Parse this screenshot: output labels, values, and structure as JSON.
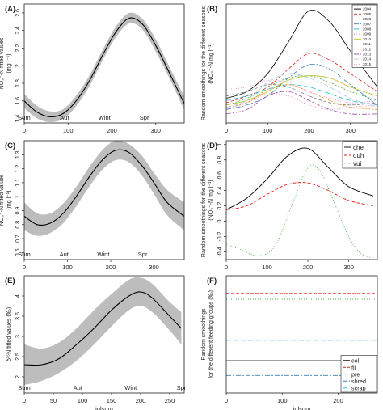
{
  "figure": {
    "background": "#ffffff",
    "band_color": "#bdbdbd"
  },
  "chart_data": [
    {
      "id": "A",
      "panel_label": "(A)",
      "type": "line",
      "ylabel_lines": [
        "NO₃⁻-N fitted values",
        "(mg l⁻¹)"
      ],
      "xlabel": "",
      "xlim": [
        0,
        365
      ],
      "ylim": [
        1.35,
        2.7
      ],
      "xticks": [
        0,
        100,
        200,
        300
      ],
      "yticks": [
        1.4,
        1.6,
        1.8,
        2.0,
        2.2,
        2.4,
        2.6
      ],
      "season_labels": [
        {
          "text": "Sum",
          "x": 0
        },
        {
          "text": "Aut",
          "x": 92
        },
        {
          "text": "Wint",
          "x": 183
        },
        {
          "text": "Spr",
          "x": 274
        }
      ],
      "band": {
        "x": [
          0,
          30,
          60,
          90,
          120,
          150,
          180,
          210,
          240,
          270,
          300,
          330,
          365
        ],
        "lower": [
          1.52,
          1.4,
          1.36,
          1.4,
          1.55,
          1.78,
          2.07,
          2.33,
          2.48,
          2.41,
          2.16,
          1.87,
          1.5
        ],
        "upper": [
          1.68,
          1.54,
          1.48,
          1.51,
          1.67,
          1.9,
          2.19,
          2.45,
          2.6,
          2.53,
          2.3,
          2.0,
          1.65
        ]
      },
      "series": [
        {
          "color": "#000000",
          "dash": "",
          "x": [
            0,
            30,
            60,
            90,
            120,
            150,
            180,
            210,
            240,
            270,
            300,
            330,
            365
          ],
          "y": [
            1.6,
            1.47,
            1.42,
            1.46,
            1.61,
            1.84,
            2.13,
            2.39,
            2.54,
            2.47,
            2.23,
            1.93,
            1.57
          ]
        }
      ]
    },
    {
      "id": "B",
      "panel_label": "(B)",
      "type": "line",
      "ylabel_lines": [
        "Random smoothings for the different seasons",
        "(NO₃⁻-N mg l⁻¹)"
      ],
      "xlabel": "",
      "xlim": [
        0,
        365
      ],
      "ylim": [
        -0.5,
        2.15
      ],
      "xticks": [
        0,
        100,
        200,
        300
      ],
      "yticks": [],
      "legend": {
        "position": "top-right",
        "entries": [
          "2004",
          "2005",
          "2006",
          "2007",
          "2008",
          "2009",
          "2010",
          "2011",
          "2012",
          "2013",
          "2014",
          "2015"
        ]
      },
      "series": [
        {
          "name": "2004",
          "color": "#000000",
          "dash": "",
          "x": [
            0,
            50,
            100,
            150,
            200,
            250,
            300,
            365
          ],
          "y": [
            0.05,
            0.2,
            0.6,
            1.3,
            2.0,
            1.75,
            1.1,
            0.3
          ]
        },
        {
          "name": "2005",
          "color": "#e41a1c",
          "dash": "4,2",
          "x": [
            0,
            50,
            100,
            150,
            200,
            250,
            300,
            365
          ],
          "y": [
            -0.05,
            0.1,
            0.3,
            0.7,
            1.05,
            0.9,
            0.6,
            0.2
          ]
        },
        {
          "name": "2006",
          "color": "#4daf4a",
          "dash": "2,2",
          "x": [
            0,
            50,
            100,
            150,
            200,
            250,
            300,
            365
          ],
          "y": [
            -0.1,
            0.05,
            0.3,
            0.5,
            0.55,
            0.4,
            0.2,
            0.0
          ]
        },
        {
          "name": "2007",
          "color": "#377eb8",
          "dash": "6,2,2,2",
          "x": [
            0,
            50,
            100,
            150,
            200,
            250,
            300,
            365
          ],
          "y": [
            -0.2,
            -0.1,
            0.1,
            0.5,
            0.8,
            0.7,
            0.35,
            -0.1
          ]
        },
        {
          "name": "2008",
          "color": "#17becf",
          "dash": "6,3",
          "x": [
            0,
            50,
            100,
            150,
            200,
            250,
            300,
            365
          ],
          "y": [
            0.0,
            0.1,
            0.25,
            0.35,
            0.3,
            0.15,
            0.0,
            -0.1
          ]
        },
        {
          "name": "2009",
          "color": "#e377c2",
          "dash": "1,2",
          "x": [
            0,
            50,
            100,
            150,
            200,
            250,
            300,
            365
          ],
          "y": [
            -0.2,
            -0.05,
            0.15,
            0.1,
            -0.1,
            -0.2,
            -0.15,
            -0.1
          ]
        },
        {
          "name": "2010",
          "color": "#bcbd22",
          "dash": "",
          "x": [
            0,
            50,
            100,
            150,
            200,
            250,
            300,
            365
          ],
          "y": [
            -0.1,
            0.0,
            0.2,
            0.45,
            0.55,
            0.5,
            0.3,
            0.1
          ]
        },
        {
          "name": "2011",
          "color": "#7f7f7f",
          "dash": "4,2",
          "x": [
            0,
            50,
            100,
            150,
            200,
            250,
            300,
            365
          ],
          "y": [
            0.1,
            0.2,
            0.35,
            0.3,
            0.1,
            -0.05,
            -0.1,
            -0.05
          ]
        },
        {
          "name": "2012",
          "color": "#ff7f00",
          "dash": "2,2",
          "x": [
            0,
            50,
            100,
            150,
            200,
            250,
            300,
            365
          ],
          "y": [
            -0.15,
            -0.05,
            0.25,
            0.35,
            0.2,
            0.0,
            -0.15,
            -0.2
          ]
        },
        {
          "name": "2013",
          "color": "#984ea3",
          "dash": "6,2,2,2",
          "x": [
            0,
            50,
            100,
            150,
            200,
            250,
            300,
            365
          ],
          "y": [
            -0.3,
            -0.2,
            0.1,
            0.2,
            0.0,
            -0.2,
            -0.3,
            -0.3
          ]
        },
        {
          "name": "2014",
          "color": "#a6cee3",
          "dash": "6,3",
          "x": [
            0,
            50,
            100,
            150,
            200,
            250,
            300,
            365
          ],
          "y": [
            -0.15,
            0.0,
            0.4,
            0.6,
            0.5,
            0.3,
            0.05,
            -0.15
          ]
        },
        {
          "name": "2015",
          "color": "#f781bf",
          "dash": "1,2",
          "x": [
            0,
            50,
            100,
            150,
            200,
            250,
            300,
            365
          ],
          "y": [
            0.25,
            0.3,
            0.45,
            0.4,
            0.2,
            0.05,
            -0.05,
            0.0
          ]
        }
      ]
    },
    {
      "id": "C",
      "panel_label": "(C)",
      "type": "line",
      "ylabel_lines": [
        "NO₃⁻-N fitted values",
        "(mg l⁻¹)"
      ],
      "xlabel": "",
      "xlim": [
        0,
        370
      ],
      "ylim": [
        0.55,
        1.4
      ],
      "xticks": [
        0,
        100,
        200,
        300
      ],
      "yticks": [
        0.6,
        0.7,
        0.8,
        0.9,
        1.0,
        1.1,
        1.2,
        1.3
      ],
      "season_labels": [
        {
          "text": "Sum",
          "x": 0
        },
        {
          "text": "Aut",
          "x": 92
        },
        {
          "text": "Wint",
          "x": 183
        },
        {
          "text": "Spr",
          "x": 274
        }
      ],
      "band": {
        "x": [
          0,
          30,
          60,
          90,
          120,
          150,
          180,
          210,
          240,
          270,
          300,
          330,
          370
        ],
        "lower": [
          0.76,
          0.72,
          0.74,
          0.81,
          0.93,
          1.07,
          1.19,
          1.26,
          1.25,
          1.16,
          1.02,
          0.87,
          0.76
        ],
        "upper": [
          0.96,
          0.88,
          0.88,
          0.95,
          1.07,
          1.21,
          1.33,
          1.4,
          1.38,
          1.3,
          1.17,
          1.05,
          0.96
        ]
      },
      "series": [
        {
          "color": "#000000",
          "dash": "",
          "x": [
            0,
            30,
            60,
            90,
            120,
            150,
            180,
            210,
            240,
            270,
            300,
            330,
            370
          ],
          "y": [
            0.86,
            0.8,
            0.81,
            0.88,
            1.0,
            1.14,
            1.26,
            1.33,
            1.32,
            1.23,
            1.1,
            0.96,
            0.86
          ]
        }
      ]
    },
    {
      "id": "D",
      "panel_label": "(D)",
      "type": "line",
      "ylabel_lines": [
        "Random smoothings for the different seasons",
        "(NO₃⁻-N mg l⁻¹)"
      ],
      "xlabel": "",
      "xlim": [
        0,
        370
      ],
      "ylim": [
        -0.5,
        1.05
      ],
      "xticks": [
        0,
        100,
        200,
        300
      ],
      "yticks": [
        -0.4,
        -0.2,
        0.0,
        0.2,
        0.4,
        0.6,
        0.8,
        1.0
      ],
      "legend": {
        "position": "top-right",
        "entries": [
          "che",
          "ouh",
          "vui"
        ]
      },
      "series": [
        {
          "name": "che",
          "color": "#000000",
          "dash": "",
          "x": [
            0,
            50,
            100,
            150,
            200,
            250,
            300,
            360
          ],
          "y": [
            0.15,
            0.3,
            0.55,
            0.85,
            0.95,
            0.7,
            0.45,
            0.33
          ]
        },
        {
          "name": "ouh",
          "color": "#e41a1c",
          "dash": "4,2",
          "x": [
            0,
            50,
            100,
            150,
            200,
            250,
            300,
            360
          ],
          "y": [
            0.15,
            0.2,
            0.35,
            0.48,
            0.5,
            0.4,
            0.27,
            0.2
          ]
        },
        {
          "name": "vui",
          "color": "#4daf4a",
          "dash": "1,2",
          "x": [
            0,
            40,
            80,
            120,
            160,
            200,
            230,
            260,
            300,
            330,
            360
          ],
          "y": [
            -0.3,
            -0.38,
            -0.45,
            -0.32,
            0.2,
            0.7,
            0.65,
            0.3,
            -0.2,
            -0.42,
            -0.48
          ]
        }
      ]
    },
    {
      "id": "E",
      "panel_label": "(E)",
      "type": "line",
      "ylabel_lines": [
        "δ¹⁵N fitted values (‰)"
      ],
      "xlabel": "julsum",
      "xlim": [
        0,
        275
      ],
      "ylim": [
        1.6,
        4.5
      ],
      "xticks": [
        0,
        50,
        100,
        150,
        200,
        250
      ],
      "yticks": [
        2.0,
        2.5,
        3.0,
        3.5,
        4.0
      ],
      "season_labels": [
        {
          "text": "Sum",
          "x": 0
        },
        {
          "text": "Aut",
          "x": 92
        },
        {
          "text": "Wint",
          "x": 183
        },
        {
          "text": "Spr",
          "x": 270
        }
      ],
      "band": {
        "x": [
          0,
          30,
          60,
          90,
          120,
          150,
          180,
          200,
          220,
          250,
          270
        ],
        "lower": [
          1.8,
          1.9,
          2.1,
          2.4,
          2.8,
          3.25,
          3.65,
          3.75,
          3.6,
          3.15,
          2.8
        ],
        "upper": [
          2.8,
          2.7,
          2.85,
          3.2,
          3.65,
          4.05,
          4.4,
          4.45,
          4.3,
          3.85,
          3.6
        ]
      },
      "series": [
        {
          "color": "#000000",
          "dash": "",
          "x": [
            0,
            30,
            60,
            90,
            120,
            150,
            180,
            200,
            220,
            250,
            270
          ],
          "y": [
            2.3,
            2.3,
            2.45,
            2.8,
            3.2,
            3.65,
            4.0,
            4.1,
            3.95,
            3.5,
            3.2
          ]
        }
      ]
    },
    {
      "id": "F",
      "panel_label": "(F)",
      "type": "line",
      "ylabel_lines": [
        "Random smoothings",
        "for the different feeding groups (‰)"
      ],
      "xlabel": "julsum",
      "xlim": [
        0,
        270
      ],
      "ylim": [
        -1.0,
        1.0
      ],
      "xticks": [
        0,
        100,
        200
      ],
      "yticks": [],
      "legend": {
        "position": "bottom-right",
        "entries": [
          "col",
          "fil",
          "pre",
          "shred",
          "scrap"
        ]
      },
      "series": [
        {
          "name": "col",
          "color": "#000000",
          "dash": "",
          "x": [
            0,
            270
          ],
          "y": [
            -0.45,
            -0.45
          ]
        },
        {
          "name": "fil",
          "color": "#e41a1c",
          "dash": "4,2",
          "x": [
            0,
            270
          ],
          "y": [
            0.7,
            0.7
          ]
        },
        {
          "name": "pre",
          "color": "#4daf4a",
          "dash": "1,2",
          "x": [
            0,
            270
          ],
          "y": [
            0.6,
            0.6
          ]
        },
        {
          "name": "shred",
          "color": "#377eb8",
          "dash": "6,2,2,2",
          "x": [
            0,
            270
          ],
          "y": [
            -0.7,
            -0.7
          ]
        },
        {
          "name": "scrap",
          "color": "#17becf",
          "dash": "6,3",
          "x": [
            0,
            270
          ],
          "y": [
            -0.1,
            -0.1
          ]
        }
      ]
    }
  ]
}
